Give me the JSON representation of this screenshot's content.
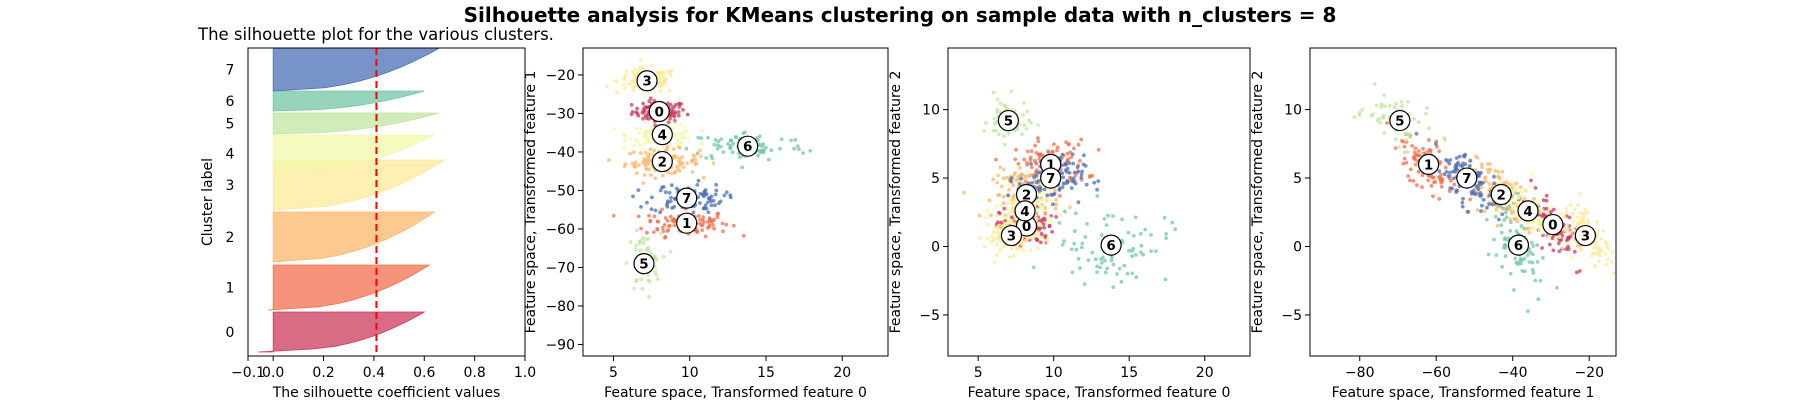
{
  "chart_data": {
    "type": "scatter",
    "title": "Silhouette analysis for KMeans clustering on sample data with n_clusters = 8",
    "cluster_colors": [
      "#cb3b5c",
      "#f1704e",
      "#fbb86b",
      "#fde99a",
      "#f1f8aa",
      "#bfe5a1",
      "#73c7a5",
      "#4b6fb5"
    ],
    "panels": [
      {
        "id": "silhouette",
        "type": "bar",
        "title": "The silhouette plot for the various clusters.",
        "xlabel": "The silhouette coefficient values",
        "ylabel": "Cluster label",
        "xlim": [
          -0.1,
          1.0
        ],
        "xticks": [
          -0.1,
          0.0,
          0.2,
          0.4,
          0.6,
          0.8,
          1.0
        ],
        "xtick_labels": [
          "−0.1",
          "0.0",
          "0.2",
          "0.4",
          "0.6",
          "0.8",
          "1.0"
        ],
        "average_silhouette": 0.41,
        "cluster_labels": [
          "0",
          "1",
          "2",
          "3",
          "4",
          "5",
          "6",
          "7"
        ],
        "cluster_max_silhouette": [
          0.6,
          0.62,
          0.64,
          0.68,
          0.64,
          0.66,
          0.6,
          0.66
        ],
        "cluster_min_silhouette": [
          -0.06,
          -0.02,
          0.0,
          0.0,
          0.0,
          0.0,
          0.0,
          0.0
        ]
      },
      {
        "id": "scatter-0-1",
        "type": "scatter",
        "xlabel": "Feature space, Transformed feature 0",
        "ylabel": "Feature space, Transformed feature 1",
        "xlim": [
          3,
          23
        ],
        "ylim": [
          -93,
          -13
        ],
        "xticks": [
          5,
          10,
          15,
          20
        ],
        "yticks": [
          -90,
          -80,
          -70,
          -60,
          -50,
          -40,
          -30,
          -20
        ],
        "centers": [
          {
            "label": "0",
            "x": 8.0,
            "y": -29.5
          },
          {
            "label": "1",
            "x": 9.8,
            "y": -58.5
          },
          {
            "label": "2",
            "x": 8.2,
            "y": -42.5
          },
          {
            "label": "3",
            "x": 7.2,
            "y": -21.5
          },
          {
            "label": "4",
            "x": 8.2,
            "y": -35.5
          },
          {
            "label": "5",
            "x": 7.0,
            "y": -69.0
          },
          {
            "label": "6",
            "x": 13.8,
            "y": -38.5
          },
          {
            "label": "7",
            "x": 9.8,
            "y": -52.0
          }
        ]
      },
      {
        "id": "scatter-0-2",
        "type": "scatter",
        "xlabel": "Feature space, Transformed feature 0",
        "ylabel": "Feature space, Transformed feature 2",
        "xlim": [
          3,
          23
        ],
        "ylim": [
          -8,
          14.5
        ],
        "xticks": [
          5,
          10,
          15,
          20
        ],
        "yticks": [
          -5,
          0,
          5,
          10
        ],
        "centers": [
          {
            "label": "0",
            "x": 8.2,
            "y": 1.5
          },
          {
            "label": "1",
            "x": 9.8,
            "y": 6.0
          },
          {
            "label": "2",
            "x": 8.2,
            "y": 3.8
          },
          {
            "label": "3",
            "x": 7.2,
            "y": 0.8
          },
          {
            "label": "4",
            "x": 8.1,
            "y": 2.6
          },
          {
            "label": "5",
            "x": 7.0,
            "y": 9.2
          },
          {
            "label": "6",
            "x": 13.8,
            "y": 0.1
          },
          {
            "label": "7",
            "x": 9.8,
            "y": 5.0
          }
        ]
      },
      {
        "id": "scatter-1-2",
        "type": "scatter",
        "xlabel": "Feature space, Transformed feature 1",
        "ylabel": "Feature space, Transformed feature 2",
        "xlim": [
          -93,
          -13
        ],
        "ylim": [
          -8,
          14.5
        ],
        "xticks": [
          -80,
          -60,
          -40,
          -20
        ],
        "yticks": [
          -5,
          0,
          5,
          10
        ],
        "centers": [
          {
            "label": "0",
            "x": -29.5,
            "y": 1.6
          },
          {
            "label": "1",
            "x": -62.0,
            "y": 6.0
          },
          {
            "label": "2",
            "x": -43.0,
            "y": 3.8
          },
          {
            "label": "3",
            "x": -21.0,
            "y": 0.8
          },
          {
            "label": "4",
            "x": -36.0,
            "y": 2.6
          },
          {
            "label": "5",
            "x": -69.5,
            "y": 9.2
          },
          {
            "label": "6",
            "x": -38.5,
            "y": 0.1
          },
          {
            "label": "7",
            "x": -52.0,
            "y": 5.0
          }
        ]
      }
    ]
  }
}
